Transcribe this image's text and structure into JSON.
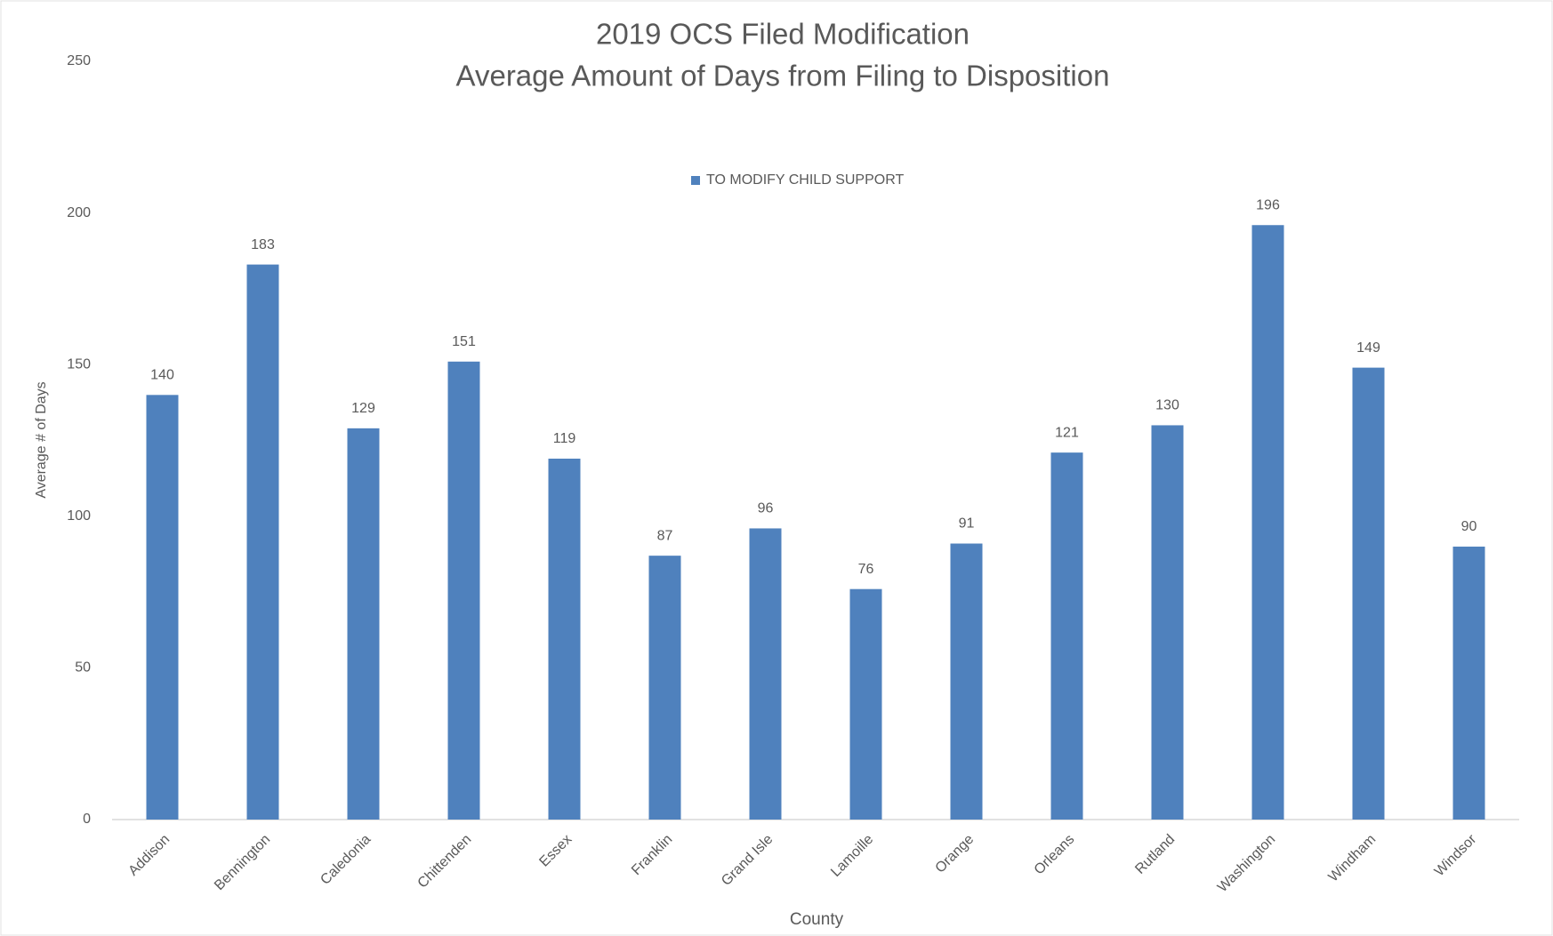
{
  "chart_data": {
    "type": "bar",
    "title": "2019 OCS Filed Modification",
    "subtitle": "Average Amount of Days from Filing to Disposition",
    "x_label": "County",
    "y_label": "Average # of Days",
    "categories": [
      "Addison",
      "Bennington",
      "Caledonia",
      "Chittenden",
      "Essex",
      "Franklin",
      "Grand Isle",
      "Lamoille",
      "Orange",
      "Orleans",
      "Rutland",
      "Washington",
      "Windham",
      "Windsor"
    ],
    "series": [
      {
        "name": "TO MODIFY CHILD SUPPORT",
        "color": "#4f81bd",
        "values": [
          140,
          183,
          129,
          151,
          119,
          87,
          96,
          76,
          91,
          121,
          130,
          196,
          149,
          90
        ]
      }
    ],
    "ylim": [
      0,
      250
    ],
    "yticks": [
      0,
      50,
      100,
      150,
      200,
      250
    ],
    "grid": false,
    "legend": "top"
  }
}
